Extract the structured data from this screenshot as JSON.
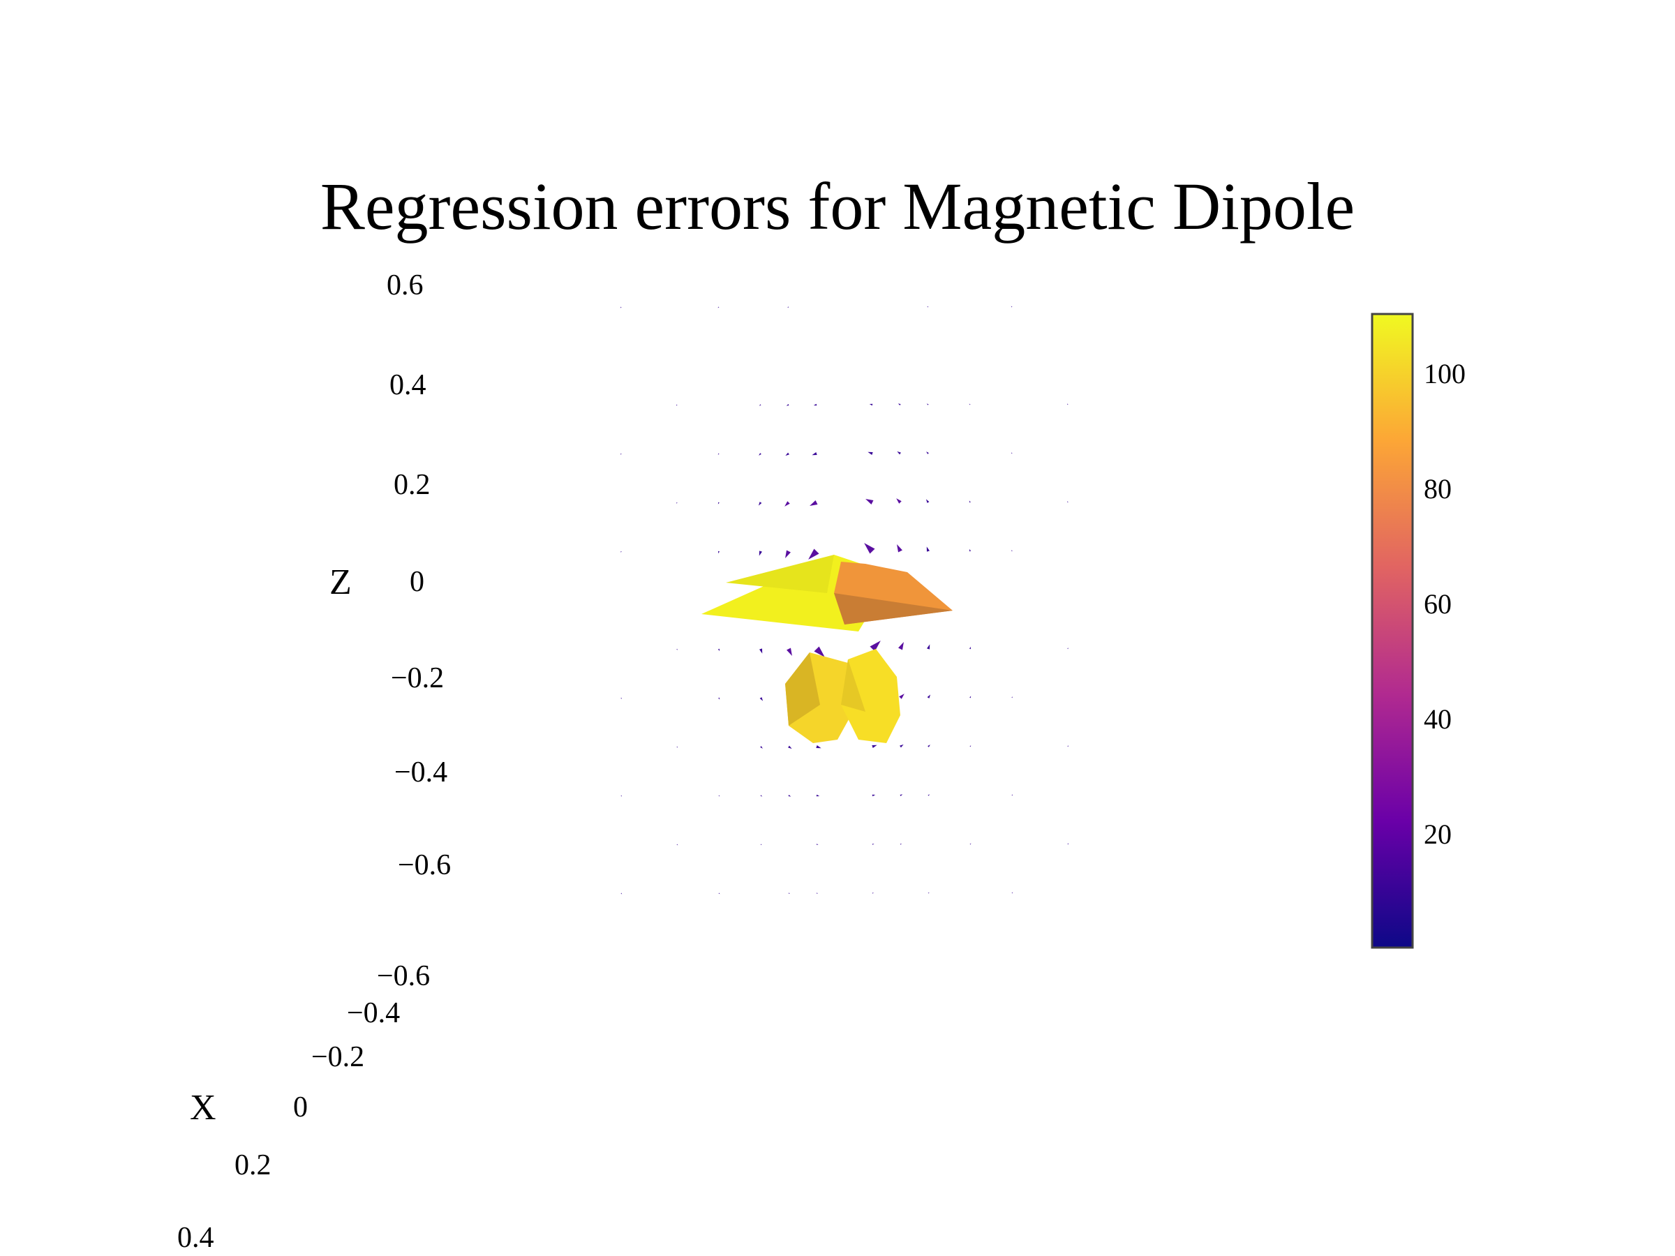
{
  "chart_data": {
    "type": "cone",
    "title": "Regression errors for Magnetic Dipole",
    "z_axis": {
      "label": "Z",
      "ticks": [
        "0.6",
        "0.4",
        "0.2",
        "0",
        "−0.2",
        "−0.4",
        "−0.6"
      ]
    },
    "x_axis": {
      "label": "X",
      "ticks": [
        "−0.6",
        "−0.4",
        "−0.2",
        "0",
        "0.2",
        "0.4"
      ]
    },
    "colorbar": {
      "colorscale": "plasma",
      "ticks": [
        "100",
        "80",
        "60",
        "40",
        "20"
      ],
      "range": [
        0,
        110
      ],
      "colors": [
        "#0d0887",
        "#6a00a8",
        "#b12a90",
        "#e16462",
        "#fca636",
        "#f0f921"
      ]
    },
    "major_cones": [
      {
        "x": -0.1,
        "z": 0.0,
        "error": 108,
        "color": "#f2f01e"
      },
      {
        "x": 0.1,
        "z": 0.0,
        "error": 90,
        "color": "#f0953a"
      },
      {
        "x": -0.1,
        "z": -0.2,
        "error": 103,
        "color": "#f5d52a"
      },
      {
        "x": 0.1,
        "z": -0.2,
        "error": 105,
        "color": "#f7de26"
      }
    ],
    "grid": {
      "on": false
    }
  }
}
